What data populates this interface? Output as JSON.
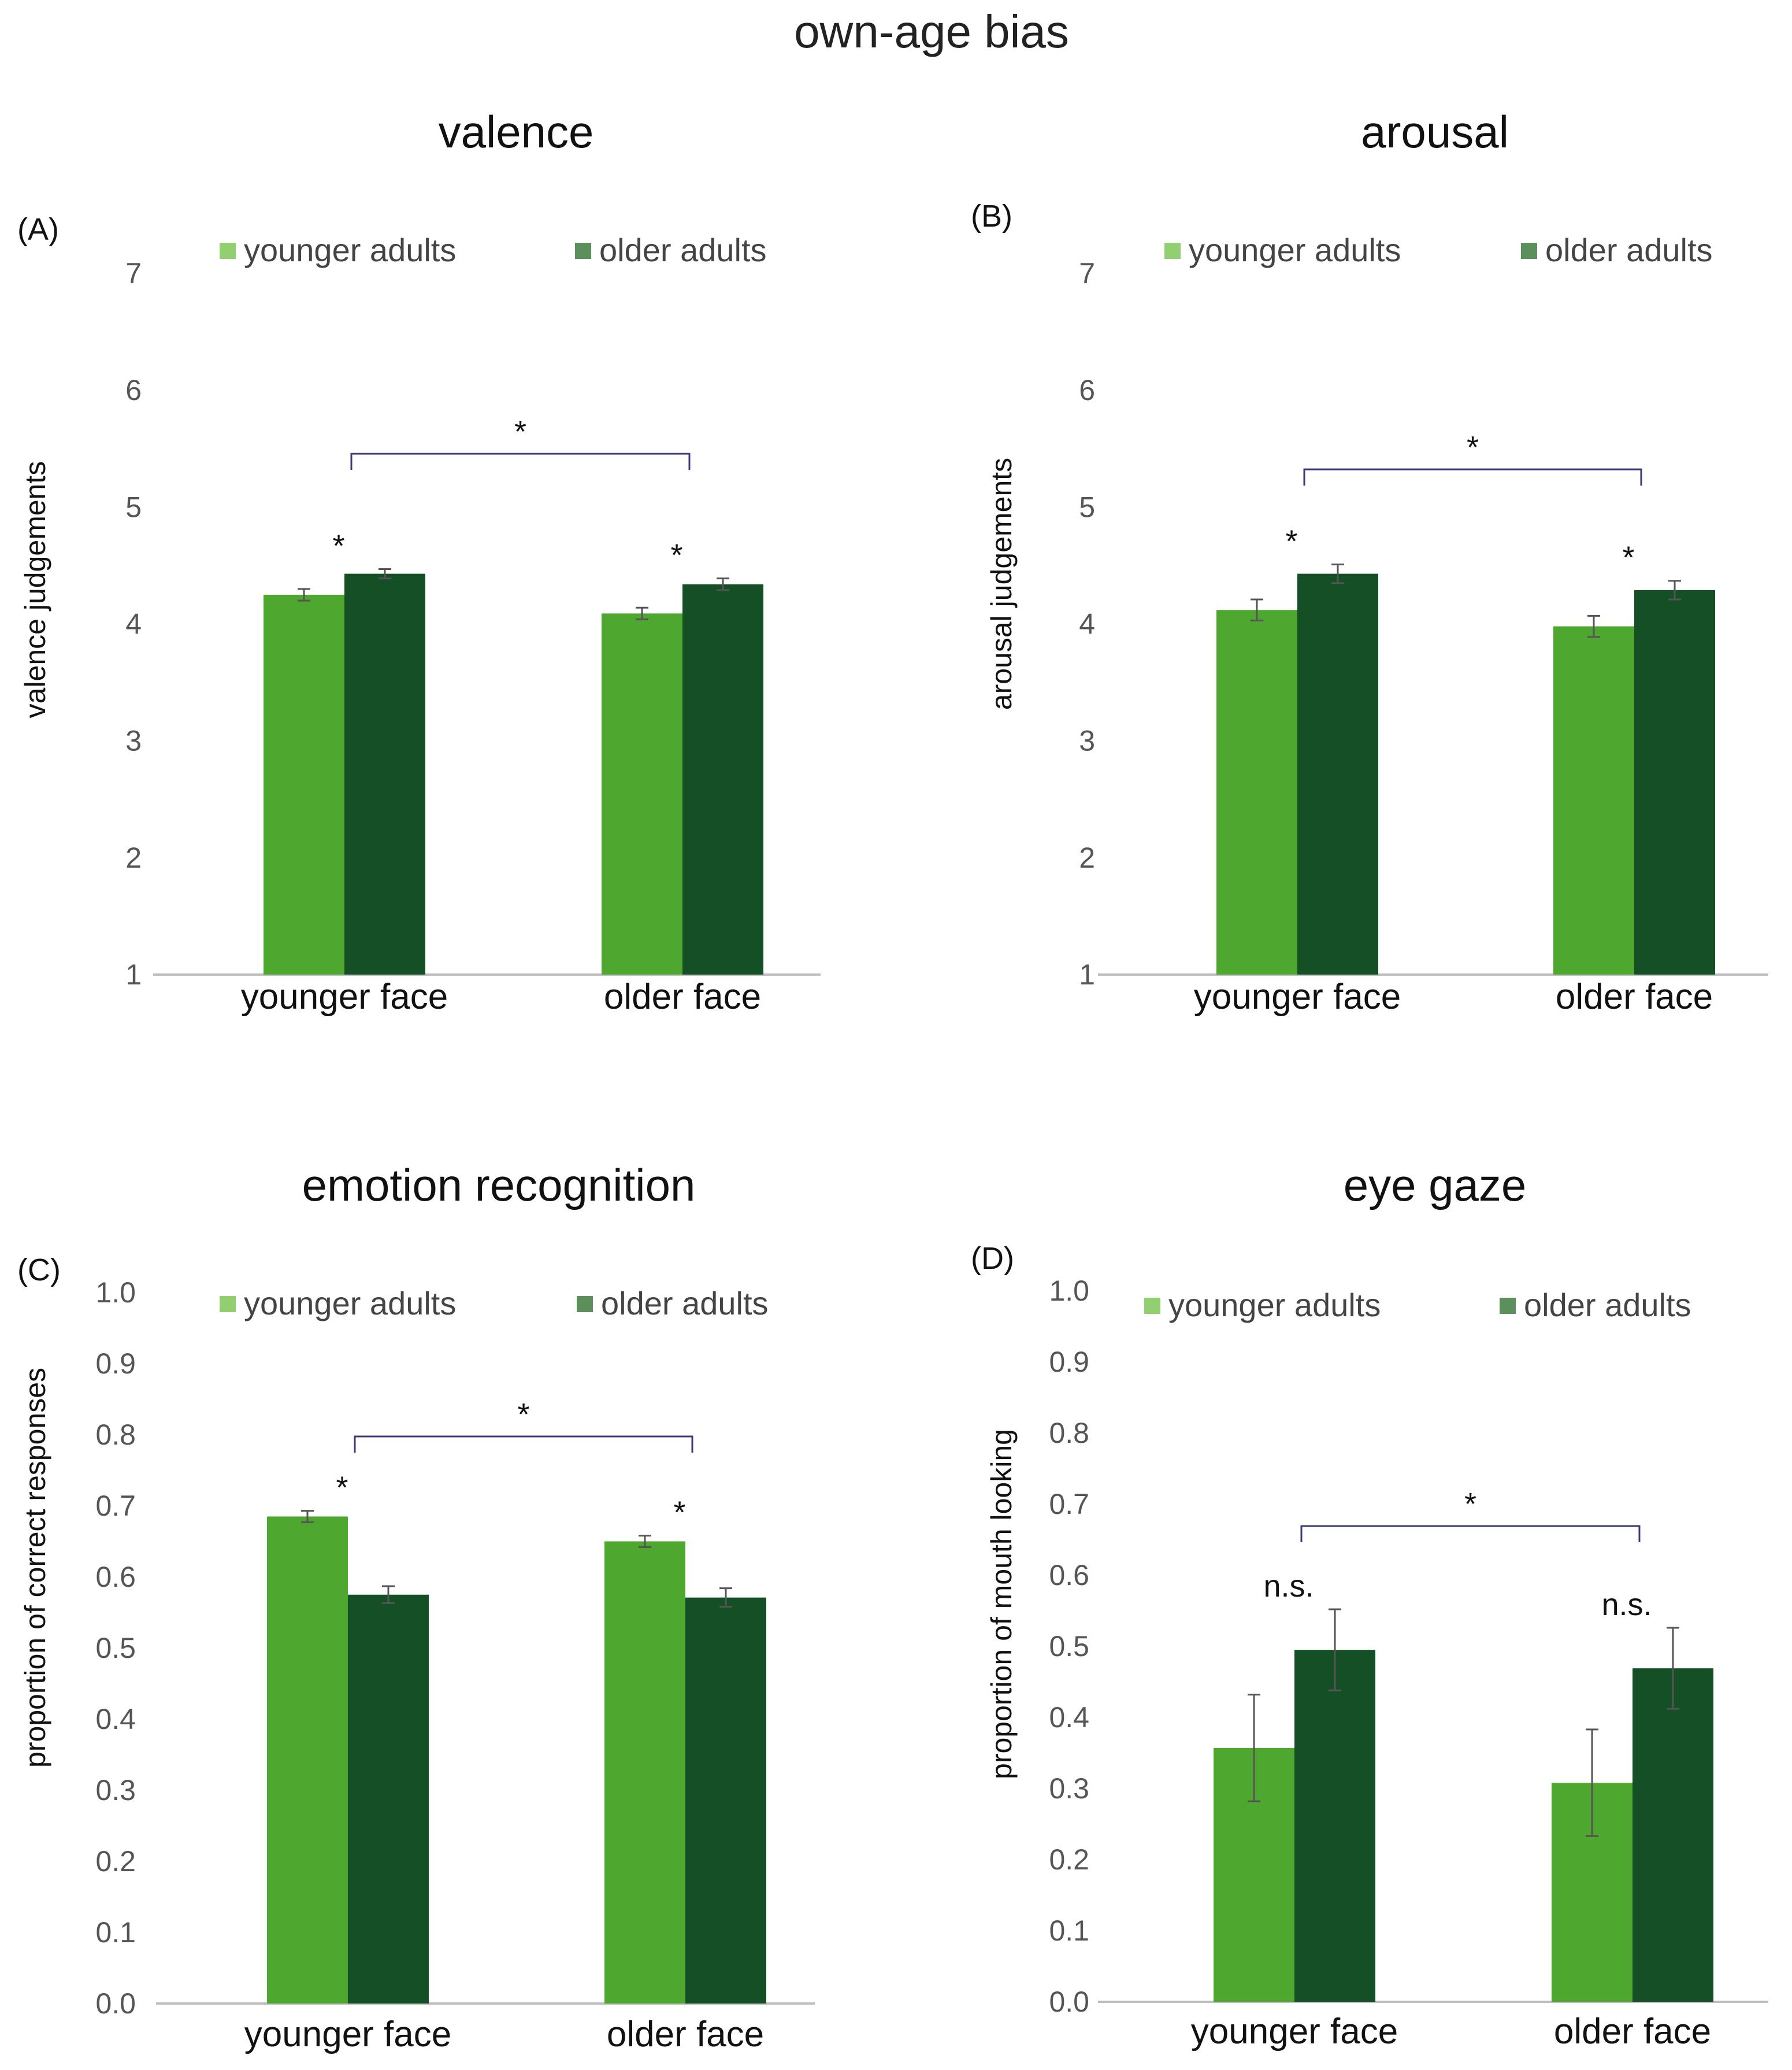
{
  "figure_title": "own-age bias",
  "colors": {
    "younger": "#4ea72e",
    "older": "#154f25",
    "legend_younger": "#92cf70",
    "legend_older": "#5b8f5c",
    "bracket": "#3a3a78",
    "axis": "#bfbfbf",
    "errorbar": "#555555"
  },
  "chart_data": [
    {
      "type": "bar",
      "panel_label": "(A)",
      "title": "valence",
      "ylabel": "valence judgements",
      "xlabel": "",
      "categories": [
        "younger face",
        "older face"
      ],
      "series": [
        {
          "name": "younger adults",
          "values": [
            4.25,
            4.09
          ],
          "errors": [
            0.05,
            0.05
          ]
        },
        {
          "name": "older adults",
          "values": [
            4.43,
            4.34
          ],
          "errors": [
            0.04,
            0.05
          ]
        }
      ],
      "ylim": [
        1,
        7
      ],
      "yticks": [
        "1",
        "2",
        "3",
        "4",
        "5",
        "6",
        "7"
      ],
      "grid": false,
      "legend": "top",
      "annotations": {
        "group_marks": [
          "*",
          "*"
        ],
        "bracket_mark": "*"
      }
    },
    {
      "type": "bar",
      "panel_label": "(B)",
      "title": "arousal",
      "ylabel": "arousal  judgements",
      "xlabel": "",
      "categories": [
        "younger face",
        "older face"
      ],
      "series": [
        {
          "name": "younger adults",
          "values": [
            4.12,
            3.98
          ],
          "errors": [
            0.09,
            0.09
          ]
        },
        {
          "name": "older adults",
          "values": [
            4.43,
            4.29
          ],
          "errors": [
            0.08,
            0.08
          ]
        }
      ],
      "ylim": [
        1,
        7
      ],
      "yticks": [
        "1",
        "2",
        "3",
        "4",
        "5",
        "6",
        "7"
      ],
      "grid": false,
      "legend": "top",
      "annotations": {
        "group_marks": [
          "*",
          "*"
        ],
        "bracket_mark": "*"
      }
    },
    {
      "type": "bar",
      "panel_label": "(C)",
      "title": "emotion recognition",
      "ylabel": "proportion of correct responses",
      "xlabel": "",
      "categories": [
        "younger face",
        "older face"
      ],
      "series": [
        {
          "name": "younger adults",
          "values": [
            0.685,
            0.65
          ],
          "errors": [
            0.008,
            0.008
          ]
        },
        {
          "name": "older adults",
          "values": [
            0.575,
            0.571
          ],
          "errors": [
            0.012,
            0.013
          ]
        }
      ],
      "ylim": [
        0,
        1
      ],
      "yticks": [
        "0.0",
        "0.1",
        "0.2",
        "0.3",
        "0.4",
        "0.5",
        "0.6",
        "0.7",
        "0.8",
        "0.9",
        "1.0"
      ],
      "grid": false,
      "legend": "top",
      "annotations": {
        "group_marks": [
          "*",
          "*"
        ],
        "bracket_mark": "*"
      }
    },
    {
      "type": "bar",
      "panel_label": "(D)",
      "title": "eye gaze",
      "ylabel": "proportion of mouth looking",
      "xlabel": "",
      "categories": [
        "younger face",
        "older face"
      ],
      "series": [
        {
          "name": "younger adults",
          "values": [
            0.357,
            0.308
          ],
          "errors": [
            0.075,
            0.075
          ]
        },
        {
          "name": "older adults",
          "values": [
            0.495,
            0.469
          ],
          "errors": [
            0.057,
            0.057
          ]
        }
      ],
      "ylim": [
        0,
        1
      ],
      "yticks": [
        "0.0",
        "0.1",
        "0.2",
        "0.3",
        "0.4",
        "0.5",
        "0.6",
        "0.7",
        "0.8",
        "0.9",
        "1.0"
      ],
      "grid": false,
      "legend": "top",
      "annotations": {
        "group_marks": [
          "n.s.",
          "n.s."
        ],
        "bracket_mark": "*"
      }
    }
  ]
}
